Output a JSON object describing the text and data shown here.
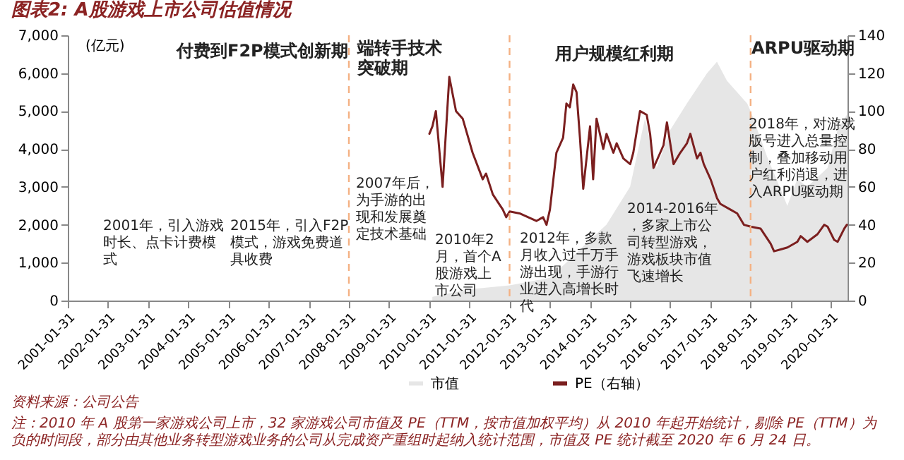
{
  "chart_data": {
    "type": "line",
    "title": "图表2: A股游戏上市公司估值情况",
    "ylabel": "(亿元)",
    "xlim": [
      "2001-01-31",
      "2020-06-30"
    ],
    "xticks": [
      "2001-01-31",
      "2002-01-31",
      "2003-01-31",
      "2004-01-31",
      "2005-01-31",
      "2006-01-31",
      "2007-01-31",
      "2008-01-31",
      "2009-01-31",
      "2010-01-31",
      "2011-01-31",
      "2012-01-31",
      "2013-01-31",
      "2014-01-31",
      "2015-01-31",
      "2016-01-31",
      "2017-01-31",
      "2018-01-31",
      "2019-01-31",
      "2020-01-31"
    ],
    "ylim": [
      0,
      7000
    ],
    "yticks": [
      0,
      {
        "value": 1000,
        "label": "1,000"
      },
      {
        "value": 2000,
        "label": "2,000"
      },
      {
        "value": 3000,
        "label": "3,000"
      },
      {
        "value": 4000,
        "label": "4,000"
      },
      {
        "value": 5000,
        "label": "5,000"
      },
      {
        "value": 6000,
        "label": "6,000"
      },
      {
        "value": 7000,
        "label": "7,000"
      }
    ],
    "y2lim": [
      0,
      140
    ],
    "y2ticks": [
      0,
      20,
      40,
      60,
      80,
      100,
      120,
      140
    ],
    "legend": "bottom",
    "series": [
      {
        "name": "市值",
        "type": "area",
        "color": "#e6e6e6",
        "x": [
          "2010-02-28",
          "2011-01-31",
          "2012-01-31",
          "2013-01-31",
          "2013-06-30",
          "2014-01-31",
          "2014-06-30",
          "2015-01-31",
          "2015-06-15",
          "2015-09-30",
          "2016-01-31",
          "2016-06-30",
          "2016-12-31",
          "2017-03-31",
          "2017-06-30",
          "2017-12-31",
          "2018-01-31",
          "2018-06-30",
          "2018-12-31",
          "2019-03-31",
          "2019-06-30",
          "2019-12-31",
          "2020-03-31",
          "2020-06-24"
        ],
        "values": [
          100,
          300,
          400,
          600,
          1000,
          1600,
          2000,
          3000,
          4800,
          3500,
          4500,
          5200,
          6000,
          6300,
          5800,
          5200,
          5000,
          3800,
          2500,
          3200,
          3000,
          3500,
          4500,
          4900
        ]
      },
      {
        "name": "PE（右轴）",
        "axis": "y2",
        "color": "#7b1f1f",
        "x": [
          "2010-02",
          "2010-03",
          "2010-04",
          "2010-06",
          "2010-08",
          "2010-10",
          "2010-12",
          "2011-03",
          "2011-06",
          "2011-07",
          "2011-09",
          "2011-12",
          "2012-01",
          "2012-02",
          "2012-05",
          "2012-10",
          "2012-12",
          "2013-01",
          "2013-02",
          "2013-04",
          "2013-06",
          "2013-07",
          "2013-08",
          "2013-09",
          "2013-10",
          "2013-11",
          "2013-12",
          "2014-02",
          "2014-03",
          "2014-04",
          "2014-06",
          "2014-07",
          "2014-09",
          "2014-10",
          "2014-12",
          "2015-02",
          "2015-03",
          "2015-05",
          "2015-07",
          "2015-08",
          "2015-09",
          "2015-11",
          "2015-12",
          "2016-01",
          "2016-03",
          "2016-05",
          "2016-07",
          "2016-08",
          "2016-10",
          "2016-11",
          "2016-12",
          "2017-02",
          "2017-04",
          "2017-05",
          "2017-08",
          "2017-10",
          "2017-12",
          "2018-02",
          "2018-05",
          "2018-08",
          "2018-09",
          "2018-11",
          "2019-01",
          "2019-04",
          "2019-05",
          "2019-07",
          "2019-10",
          "2019-12",
          "2020-01",
          "2020-03",
          "2020-04",
          "2020-06",
          "2020-06-24"
        ],
        "values": [
          88,
          92,
          100,
          60,
          118,
          100,
          96,
          78,
          64,
          67,
          56,
          48,
          44,
          47,
          46,
          42,
          44,
          40,
          48,
          78,
          86,
          104,
          102,
          114,
          110,
          86,
          59,
          92,
          64,
          96,
          80,
          88,
          78,
          83,
          75,
          72,
          78,
          100,
          98,
          88,
          70,
          78,
          82,
          94,
          72,
          78,
          83,
          88,
          75,
          78,
          72,
          64,
          54,
          51,
          48,
          46,
          40,
          39,
          38,
          30,
          26,
          27,
          28,
          31,
          34,
          31,
          35,
          40,
          39,
          32,
          31,
          38,
          40
        ]
      }
    ],
    "ref_lines": [
      {
        "axis": "x",
        "value": "2008-01-31",
        "color": "#f4b183",
        "line_style": "dashed"
      },
      {
        "axis": "x",
        "value": "2012-01-31",
        "color": "#f4b183",
        "line_style": "dashed"
      },
      {
        "axis": "x",
        "value": "2018-01-31",
        "color": "#f4b183",
        "line_style": "dashed"
      }
    ],
    "annotations": [
      "付费到F2P模式创新期",
      "端转手技术突破期",
      "用户规模红利期",
      "ARPU驱动期",
      "2001年，引入游戏时长、点卡计费模式",
      "2015年，引入F2P模式，游戏免费道具收费",
      "2007年后，为手游的出现和发展奠定技术基础",
      "2010年2月，首个A股游戏上市公司",
      "2012年，多款月收入过千万手游出现，手游行业进入高增长时代",
      "2014-2016年，多家上市公司转型游戏，游戏板块市值飞速增长",
      "2018年，对游戏版号进入总量控制，叠加移动用户红利消退，进入ARPU驱动期",
      "资料来源：公司公告",
      "注：2010 年 A 股第一家游戏公司上市，32 家游戏公司市值及 PE（TTM，按市值加权平均）从 2010 年起开始统计，剔除 PE（TTM）为负的时间段，部分由其他业务转型游戏业务的公司从完成资产重组时起纳入统计范围，市值及 PE 统计截至 2020 年 6 月 24 日。"
    ]
  }
}
